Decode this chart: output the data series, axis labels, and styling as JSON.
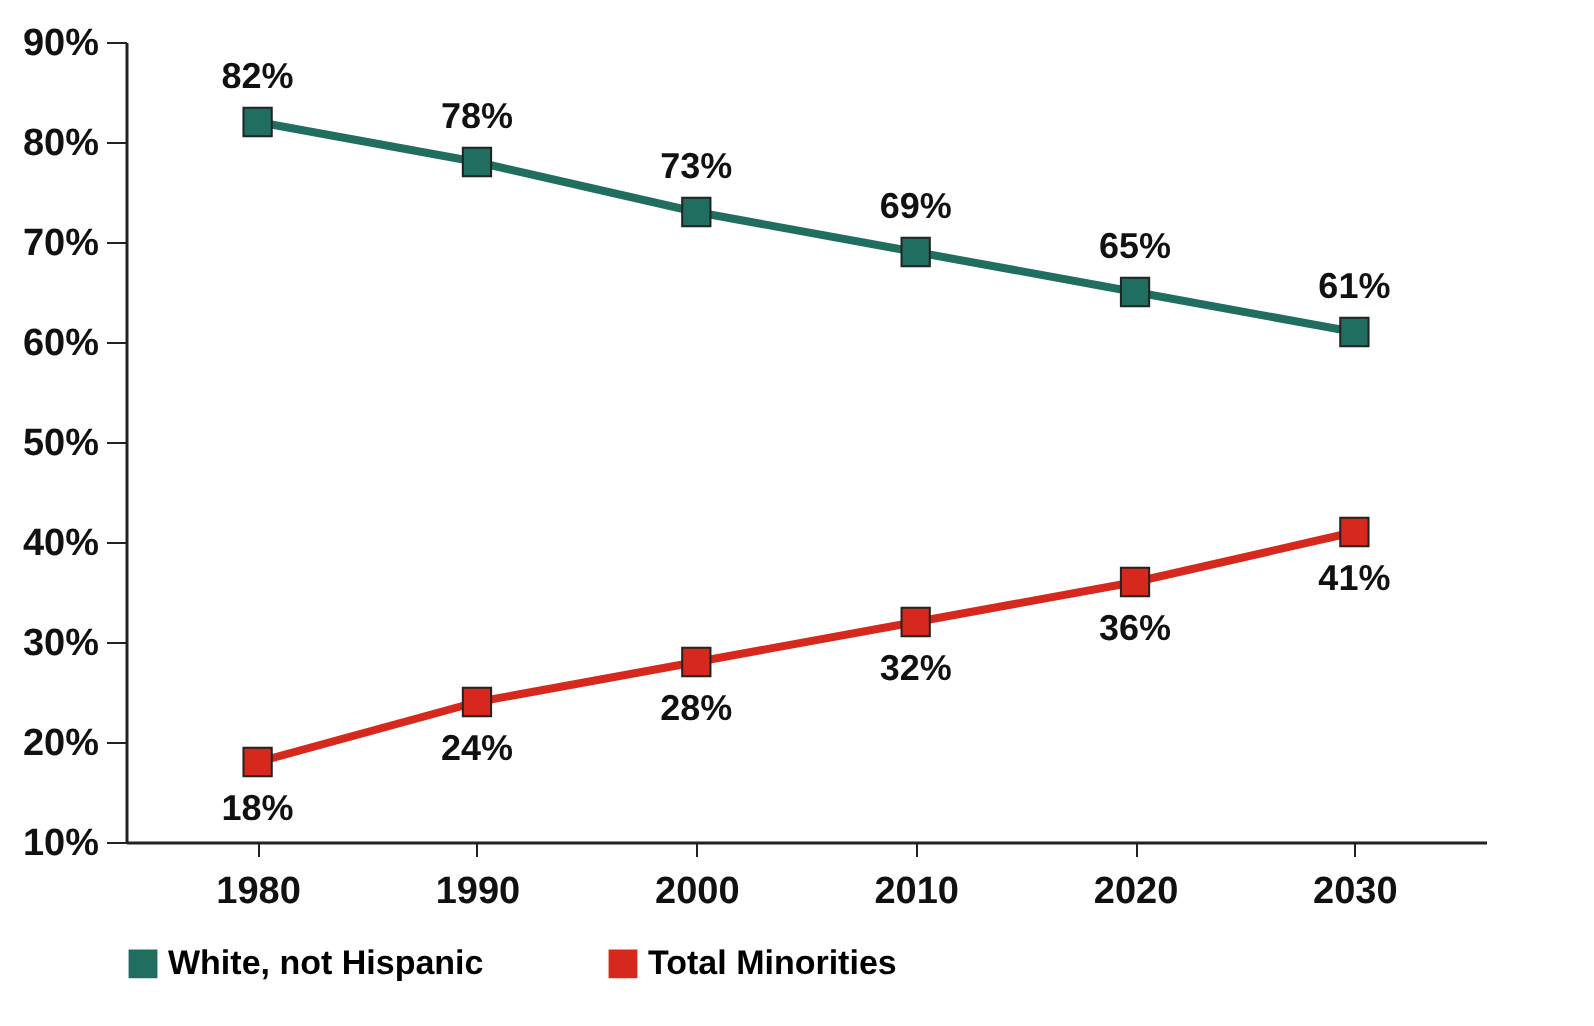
{
  "chart_data": {
    "type": "line",
    "x": [
      1980,
      1990,
      2000,
      2010,
      2020,
      2030
    ],
    "series": [
      {
        "name": "White, not Hispanic",
        "color": "#1f6e60",
        "values": [
          82,
          78,
          73,
          69,
          65,
          61
        ],
        "value_labels": [
          "82%",
          "78%",
          "73%",
          "69%",
          "65%",
          "61%"
        ]
      },
      {
        "name": "Total Minorities",
        "color": "#d6281c",
        "values": [
          18,
          24,
          28,
          32,
          36,
          41
        ],
        "value_labels": [
          "18%",
          "24%",
          "28%",
          "32%",
          "36%",
          "41%"
        ]
      }
    ],
    "xlim": [
      1974,
      2036
    ],
    "xticks": [
      1980,
      1990,
      2000,
      2010,
      2020,
      2030
    ],
    "ylim": [
      10,
      90
    ],
    "yticks": [
      {
        "value": 10,
        "label": "10%"
      },
      {
        "value": 20,
        "label": "20%"
      },
      {
        "value": 30,
        "label": "30%"
      },
      {
        "value": 40,
        "label": "40%"
      },
      {
        "value": 50,
        "label": "50%"
      },
      {
        "value": 60,
        "label": "60%"
      },
      {
        "value": 70,
        "label": "70%"
      },
      {
        "value": 80,
        "label": "80%"
      },
      {
        "value": 90,
        "label": "90%"
      }
    ],
    "grid": false,
    "legend": "bottom",
    "marker": "square",
    "line_style": "solid"
  }
}
